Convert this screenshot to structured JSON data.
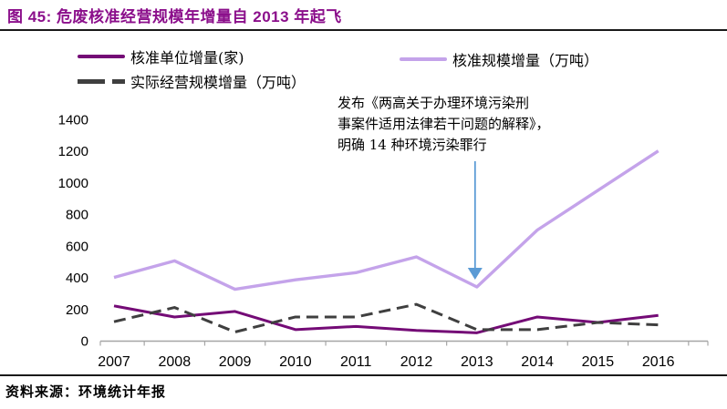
{
  "header": {
    "title": "图 45:  危废核准经营规模年增量自 2013 年起飞"
  },
  "legend": {
    "items": [
      {
        "label": "核准单位增量(家)"
      },
      {
        "label": "核准规模增量（万吨）"
      },
      {
        "label": "实际经营规模增量（万吨）"
      }
    ]
  },
  "annotation": {
    "lines": [
      "发布《两高关于办理环境污染刑",
      "事案件适用法律若干问题的解释》，",
      "明确 14 种环境污染罪行"
    ],
    "arrow_target_year": "2013"
  },
  "footer": {
    "source": "资料来源：环境统计年报"
  },
  "colors": {
    "title": "#8B0F8B",
    "rule": "#1a1a1a",
    "axis": "#A6A6A6",
    "arrow": "#5B9BD5"
  },
  "chart_data": {
    "type": "line",
    "title": "危废核准经营规模年增量自 2013 年起飞",
    "categories": [
      "2007",
      "2008",
      "2009",
      "2010",
      "2011",
      "2012",
      "2013",
      "2014",
      "2015",
      "2016"
    ],
    "series": [
      {
        "name": "核准单位增量(家)",
        "color": "#740B76",
        "line_style": "solid",
        "values": [
          220,
          150,
          185,
          70,
          90,
          65,
          50,
          150,
          115,
          160
        ]
      },
      {
        "name": "核准规模增量（万吨）",
        "color": "#C4A3EA",
        "line_style": "solid",
        "values": [
          400,
          505,
          325,
          385,
          430,
          530,
          340,
          700,
          950,
          1200
        ]
      },
      {
        "name": "实际经营规模增量（万吨）",
        "color": "#3F3F3F",
        "line_style": "dashed",
        "values": [
          120,
          210,
          55,
          150,
          150,
          230,
          70,
          70,
          115,
          100
        ]
      }
    ],
    "xlabel": "",
    "ylabel": "",
    "ylim": [
      0,
      1400
    ],
    "ytick_step": 200,
    "grid": false,
    "legend_position": "top"
  }
}
